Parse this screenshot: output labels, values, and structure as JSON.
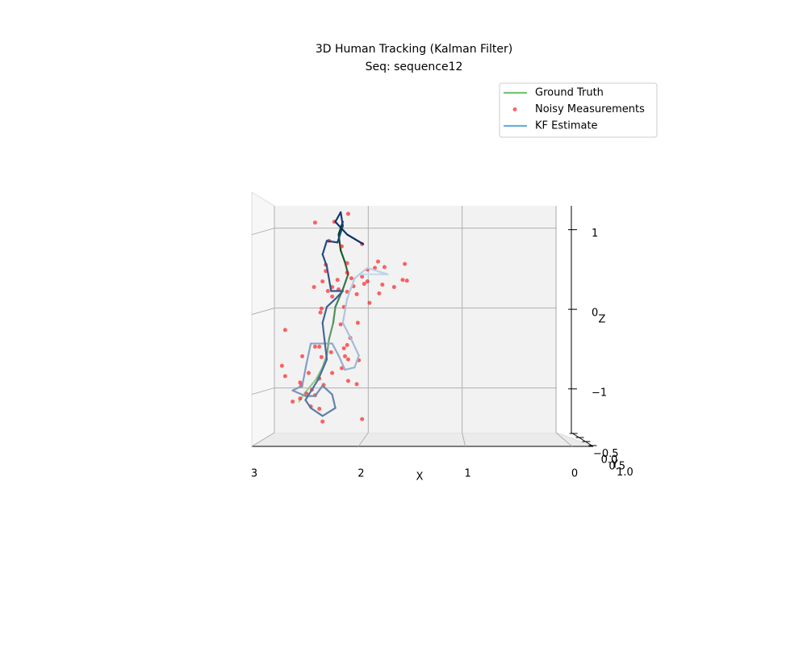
{
  "chart_data": {
    "type": "line3d",
    "title": [
      "3D Human Tracking (Kalman Filter)",
      "Seq: sequence12"
    ],
    "xlabel": "X",
    "ylabel": "Y",
    "zlabel": "Z",
    "xlim": [
      0,
      3
    ],
    "xticks": [
      3,
      2,
      1,
      0
    ],
    "ylim": [
      -0.6,
      1.1
    ],
    "yticks": [
      {
        "value": -0.5,
        "label": "−0.5"
      },
      {
        "value": 0,
        "label": "0.0"
      },
      0.5,
      {
        "value": 1,
        "label": "1.0"
      }
    ],
    "zlim": [
      -1.55,
      1.3
    ],
    "zticks": [
      1,
      {
        "value": 0,
        "label": "0"
      },
      {
        "value": -1,
        "label": "−1"
      }
    ],
    "grid": true,
    "legend": "upper right",
    "series": [
      {
        "name": "Ground Truth",
        "kind": "line",
        "color": "#74c476",
        "cmap": [
          "#a1d99b",
          "#00441b"
        ],
        "x": [
          2.58,
          2.52,
          2.42,
          2.36,
          2.32,
          2.3,
          2.26,
          2.24,
          2.17,
          2.12,
          2.15,
          2.19,
          2.21,
          2.17
        ],
        "z": [
          -1.16,
          -1.04,
          -0.88,
          -0.73,
          -0.58,
          -0.38,
          -0.17,
          0.03,
          0.25,
          0.44,
          0.59,
          0.74,
          0.94,
          1.1
        ]
      },
      {
        "name": "Noisy Measurements",
        "kind": "scatter",
        "color": "#ff0000",
        "x": [
          2.12,
          2.43,
          2.25,
          2.3,
          2.18,
          1.99,
          2.13,
          2.33,
          1.84,
          1.94,
          1.87,
          1.78,
          1.59,
          2.13,
          2.09,
          2.33,
          1.99,
          2.22,
          2.36,
          2.44,
          2.27,
          2.07,
          1.97,
          1.94,
          1.8,
          1.69,
          1.61,
          1.57,
          2.13,
          2.31,
          2.21,
          2.04,
          2.27,
          1.83,
          1.92,
          2.16,
          2.37,
          2.38,
          2.71,
          2.19,
          2.03,
          2.1,
          2.43,
          2.39,
          2.13,
          2.28,
          2.16,
          2.37,
          2.15,
          2.12,
          2.02,
          2.74,
          2.55,
          2.18,
          2.27,
          2.71,
          2.49,
          2.39,
          2.12,
          2.04,
          2.57,
          2.35,
          2.56,
          2.46,
          2.51,
          2.43,
          2.64,
          2.47,
          2.39,
          2.36,
          1.99,
          2.57
        ],
        "z": [
          1.2,
          1.09,
          1.1,
          0.86,
          0.79,
          0.82,
          0.58,
          0.56,
          0.6,
          0.5,
          0.52,
          0.53,
          0.57,
          0.46,
          0.39,
          0.48,
          0.41,
          0.37,
          0.35,
          0.28,
          0.28,
          0.29,
          0.32,
          0.35,
          0.31,
          0.28,
          0.37,
          0.36,
          0.22,
          0.23,
          0.25,
          0.19,
          0.16,
          0.2,
          0.08,
          0.03,
          0.01,
          -0.04,
          -0.26,
          -0.19,
          -0.17,
          -0.36,
          -0.47,
          -0.47,
          -0.45,
          -0.54,
          -0.49,
          -0.6,
          -0.59,
          -0.63,
          -0.64,
          -0.71,
          -0.59,
          -0.74,
          -0.8,
          -0.84,
          -0.8,
          -0.87,
          -0.9,
          -0.94,
          -0.92,
          -0.95,
          -0.96,
          -1.01,
          -1.06,
          -1.08,
          -1.16,
          -1.22,
          -1.25,
          -1.41,
          -1.38,
          -1.12
        ]
      },
      {
        "name": "KF Estimate",
        "kind": "line",
        "color": "#6baed6",
        "cmap": [
          "#c6dbef",
          "#08306b"
        ],
        "x": [
          2.02,
          1.83,
          1.75,
          1.94,
          2.06,
          2.13,
          2.17,
          2.09,
          2.02,
          2.06,
          2.15,
          2.21,
          2.27,
          2.47,
          2.51,
          2.55,
          2.64,
          2.52,
          2.43,
          2.36,
          2.27,
          2.24,
          2.36,
          2.47,
          2.52,
          2.4,
          2.32,
          2.36,
          2.32,
          2.24,
          2.17,
          2.28,
          2.32,
          2.36,
          2.32,
          2.22,
          2.17,
          2.19,
          2.24,
          2.13,
          1.98
        ],
        "z": [
          0.44,
          0.44,
          0.44,
          0.52,
          0.39,
          0.13,
          -0.17,
          -0.38,
          -0.58,
          -0.73,
          -0.76,
          -0.58,
          -0.43,
          -0.43,
          -0.68,
          -0.96,
          -1.02,
          -1.09,
          -1.09,
          -0.96,
          -1.07,
          -1.24,
          -1.34,
          -1.24,
          -1.14,
          -0.88,
          -0.63,
          -0.17,
          0.03,
          0.13,
          0.23,
          0.23,
          0.54,
          0.69,
          0.86,
          0.84,
          1.05,
          1.22,
          1.1,
          0.94,
          0.82
        ]
      }
    ]
  }
}
